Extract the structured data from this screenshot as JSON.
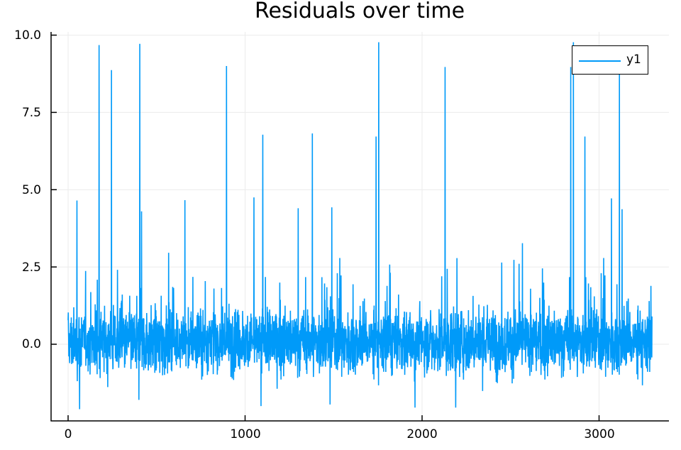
{
  "chart_data": {
    "type": "line",
    "title": "Residuals over time",
    "xlabel": "",
    "ylabel": "",
    "xlim": [
      -100,
      3400
    ],
    "ylim": [
      -2.5,
      10.0
    ],
    "xticks": [
      0,
      1000,
      2000,
      3000
    ],
    "xtick_labels": [
      "0",
      "1000",
      "2000",
      "3000"
    ],
    "yticks": [
      0.0,
      2.5,
      5.0,
      7.5,
      10.0
    ],
    "ytick_labels": [
      "0.0",
      "2.5",
      "5.0",
      "7.5",
      "10.0"
    ],
    "grid": true,
    "legend_position": "top-right",
    "n_points": 3300,
    "series": [
      {
        "name": "y1",
        "color": "#009af9",
        "description": "Noisy residuals centered near 0 (mostly between -1.5 and 2.5) with occasional large positive spikes",
        "noise_range": [
          -2.1,
          3.3
        ],
        "spikes": [
          {
            "x": 50,
            "y": 4.65
          },
          {
            "x": 175,
            "y": 9.68
          },
          {
            "x": 245,
            "y": 8.87
          },
          {
            "x": 405,
            "y": 9.72
          },
          {
            "x": 415,
            "y": 4.3
          },
          {
            "x": 660,
            "y": 4.66
          },
          {
            "x": 895,
            "y": 9.0
          },
          {
            "x": 1050,
            "y": 4.75
          },
          {
            "x": 1100,
            "y": 6.78
          },
          {
            "x": 1300,
            "y": 4.4
          },
          {
            "x": 1380,
            "y": 6.82
          },
          {
            "x": 1490,
            "y": 4.43
          },
          {
            "x": 1740,
            "y": 6.72
          },
          {
            "x": 1755,
            "y": 9.77
          },
          {
            "x": 2130,
            "y": 8.97
          },
          {
            "x": 2840,
            "y": 8.97
          },
          {
            "x": 2855,
            "y": 9.77
          },
          {
            "x": 2920,
            "y": 6.72
          },
          {
            "x": 3070,
            "y": 4.72
          },
          {
            "x": 3115,
            "y": 8.8
          },
          {
            "x": 3130,
            "y": 4.37
          }
        ],
        "minima": [
          {
            "x": 65,
            "y": -2.1
          },
          {
            "x": 400,
            "y": -1.8
          },
          {
            "x": 1090,
            "y": -2.0
          },
          {
            "x": 1480,
            "y": -1.95
          },
          {
            "x": 1960,
            "y": -2.05
          },
          {
            "x": 2190,
            "y": -2.05
          }
        ]
      }
    ]
  },
  "legend": {
    "label": "y1"
  }
}
